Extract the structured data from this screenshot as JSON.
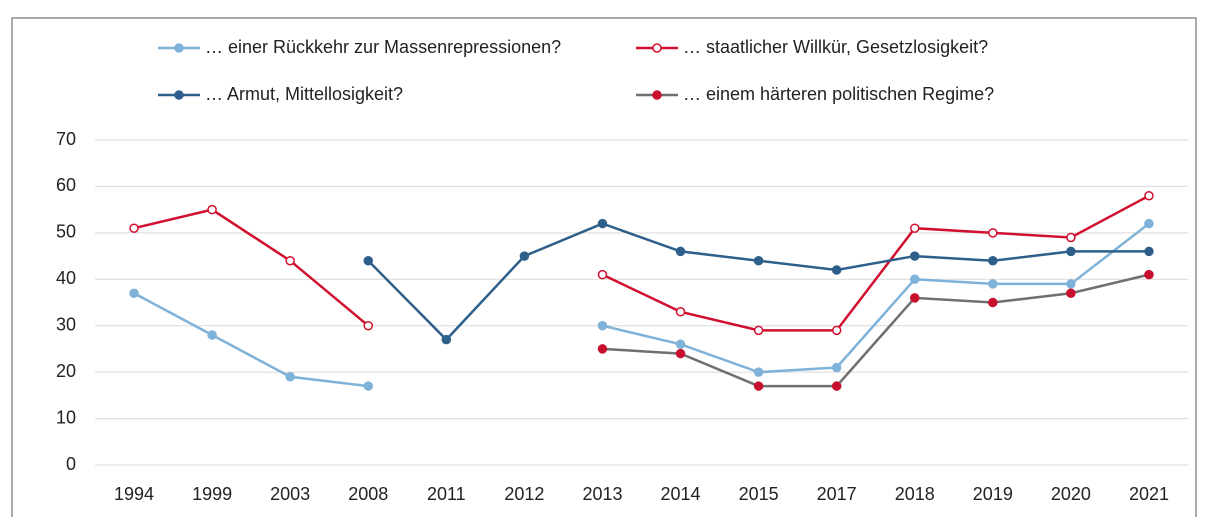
{
  "chart_data": {
    "type": "line",
    "categories": [
      "1994",
      "1999",
      "2003",
      "2008",
      "2011",
      "2012",
      "2013",
      "2014",
      "2015",
      "2017",
      "2018",
      "2019",
      "2020",
      "2021"
    ],
    "series": [
      {
        "name": "… einer Rückkehr zur Massenrepressionen?",
        "color": "#7fb2d9",
        "marker_color": "#7fb2d9",
        "marker_fill": "#7fb2d9",
        "values": [
          37,
          28,
          19,
          17,
          null,
          null,
          30,
          26,
          20,
          21,
          40,
          39,
          39,
          52
        ]
      },
      {
        "name": "… staatlicher Willkür, Gesetzlosigkeit?",
        "color": "#d0102e",
        "marker_color": "#d0102e",
        "marker_fill": "#ffffff",
        "values": [
          51,
          55,
          44,
          30,
          null,
          null,
          41,
          33,
          29,
          29,
          51,
          50,
          49,
          58
        ]
      },
      {
        "name": "… Armut, Mittellosigkeit?",
        "color": "#2e5f8a",
        "marker_color": "#2e5f8a",
        "marker_fill": "#2e5f8a",
        "values": [
          null,
          null,
          null,
          44,
          27,
          45,
          52,
          46,
          44,
          42,
          45,
          44,
          46,
          46
        ]
      },
      {
        "name": "… einem härteren politischen Regime?",
        "color": "#6f6f6f",
        "marker_color": "#c8102e",
        "marker_fill": "#c8102e",
        "values": [
          null,
          null,
          null,
          null,
          null,
          null,
          25,
          24,
          17,
          17,
          36,
          35,
          37,
          41
        ]
      }
    ],
    "ylim": [
      0,
      70
    ],
    "yticks": [
      0,
      10,
      20,
      30,
      40,
      50,
      60,
      70
    ],
    "grid": true,
    "legend": "top"
  }
}
